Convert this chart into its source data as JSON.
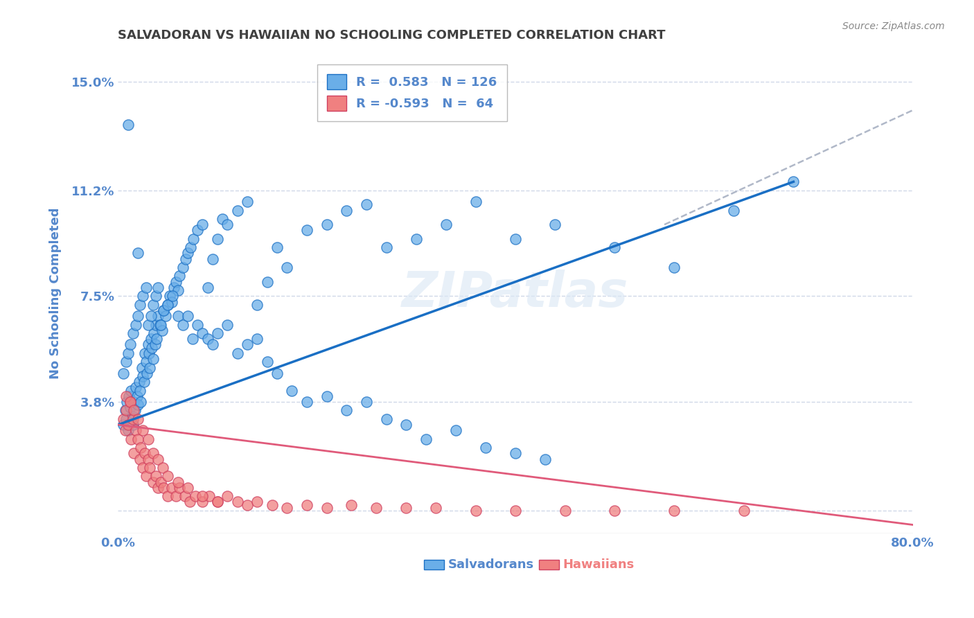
{
  "title": "SALVADORAN VS HAWAIIAN NO SCHOOLING COMPLETED CORRELATION CHART",
  "source": "Source: ZipAtlas.com",
  "ylabel": "No Schooling Completed",
  "x_min": 0.0,
  "x_max": 0.8,
  "y_min": -0.008,
  "y_max": 0.16,
  "x_ticks": [
    0.0,
    0.1,
    0.2,
    0.3,
    0.4,
    0.5,
    0.6,
    0.7,
    0.8
  ],
  "x_tick_labels": [
    "0.0%",
    "",
    "",
    "",
    "",
    "",
    "",
    "",
    "80.0%"
  ],
  "y_tick_vals": [
    0.0,
    0.038,
    0.075,
    0.112,
    0.15
  ],
  "y_tick_labels": [
    "",
    "3.8%",
    "7.5%",
    "11.2%",
    "15.0%"
  ],
  "legend_blue_r": "R =  0.583",
  "legend_blue_n": "N = 126",
  "legend_pink_r": "R = -0.593",
  "legend_pink_n": "N =  64",
  "blue_color": "#6aaee8",
  "pink_color": "#f08080",
  "trend_blue_color": "#1a6fc4",
  "trend_pink_color": "#e05a7a",
  "dashed_color": "#b0b8c8",
  "watermark": "ZIPatlas",
  "label_salvadorans": "Salvadorans",
  "label_hawaiians": "Hawaiians",
  "blue_scatter_x": [
    0.005,
    0.007,
    0.008,
    0.009,
    0.01,
    0.011,
    0.012,
    0.013,
    0.014,
    0.015,
    0.016,
    0.017,
    0.018,
    0.019,
    0.02,
    0.021,
    0.022,
    0.023,
    0.024,
    0.025,
    0.026,
    0.027,
    0.028,
    0.029,
    0.03,
    0.031,
    0.032,
    0.033,
    0.034,
    0.035,
    0.036,
    0.037,
    0.038,
    0.039,
    0.04,
    0.042,
    0.044,
    0.046,
    0.048,
    0.05,
    0.052,
    0.054,
    0.056,
    0.058,
    0.06,
    0.062,
    0.065,
    0.068,
    0.07,
    0.073,
    0.076,
    0.08,
    0.085,
    0.09,
    0.095,
    0.1,
    0.105,
    0.11,
    0.12,
    0.13,
    0.14,
    0.15,
    0.16,
    0.17,
    0.19,
    0.21,
    0.23,
    0.25,
    0.27,
    0.3,
    0.33,
    0.36,
    0.4,
    0.44,
    0.5,
    0.56,
    0.62,
    0.68,
    0.005,
    0.008,
    0.01,
    0.012,
    0.015,
    0.018,
    0.02,
    0.022,
    0.025,
    0.028,
    0.03,
    0.033,
    0.035,
    0.038,
    0.04,
    0.043,
    0.046,
    0.05,
    0.055,
    0.06,
    0.065,
    0.07,
    0.075,
    0.08,
    0.085,
    0.09,
    0.095,
    0.1,
    0.11,
    0.12,
    0.13,
    0.14,
    0.15,
    0.16,
    0.175,
    0.19,
    0.21,
    0.23,
    0.25,
    0.27,
    0.29,
    0.31,
    0.34,
    0.37,
    0.4,
    0.43,
    0.01,
    0.02
  ],
  "blue_scatter_y": [
    0.03,
    0.035,
    0.032,
    0.038,
    0.028,
    0.04,
    0.036,
    0.042,
    0.033,
    0.03,
    0.038,
    0.035,
    0.043,
    0.04,
    0.037,
    0.045,
    0.042,
    0.038,
    0.05,
    0.047,
    0.045,
    0.055,
    0.052,
    0.048,
    0.058,
    0.055,
    0.05,
    0.06,
    0.057,
    0.053,
    0.062,
    0.058,
    0.065,
    0.06,
    0.068,
    0.065,
    0.063,
    0.07,
    0.068,
    0.072,
    0.075,
    0.073,
    0.078,
    0.08,
    0.077,
    0.082,
    0.085,
    0.088,
    0.09,
    0.092,
    0.095,
    0.098,
    0.1,
    0.078,
    0.088,
    0.095,
    0.102,
    0.1,
    0.105,
    0.108,
    0.072,
    0.08,
    0.092,
    0.085,
    0.098,
    0.1,
    0.105,
    0.107,
    0.092,
    0.095,
    0.1,
    0.108,
    0.095,
    0.1,
    0.092,
    0.085,
    0.105,
    0.115,
    0.048,
    0.052,
    0.055,
    0.058,
    0.062,
    0.065,
    0.068,
    0.072,
    0.075,
    0.078,
    0.065,
    0.068,
    0.072,
    0.075,
    0.078,
    0.065,
    0.07,
    0.072,
    0.075,
    0.068,
    0.065,
    0.068,
    0.06,
    0.065,
    0.062,
    0.06,
    0.058,
    0.062,
    0.065,
    0.055,
    0.058,
    0.06,
    0.052,
    0.048,
    0.042,
    0.038,
    0.04,
    0.035,
    0.038,
    0.032,
    0.03,
    0.025,
    0.028,
    0.022,
    0.02,
    0.018,
    0.135,
    0.09
  ],
  "pink_scatter_x": [
    0.005,
    0.007,
    0.008,
    0.01,
    0.012,
    0.013,
    0.015,
    0.016,
    0.018,
    0.02,
    0.022,
    0.023,
    0.025,
    0.027,
    0.028,
    0.03,
    0.032,
    0.035,
    0.038,
    0.04,
    0.043,
    0.046,
    0.05,
    0.054,
    0.058,
    0.062,
    0.067,
    0.072,
    0.078,
    0.085,
    0.092,
    0.1,
    0.11,
    0.12,
    0.13,
    0.14,
    0.155,
    0.17,
    0.19,
    0.21,
    0.235,
    0.26,
    0.29,
    0.32,
    0.36,
    0.4,
    0.45,
    0.5,
    0.56,
    0.63,
    0.008,
    0.012,
    0.016,
    0.02,
    0.025,
    0.03,
    0.035,
    0.04,
    0.045,
    0.05,
    0.06,
    0.07,
    0.085,
    0.1
  ],
  "pink_scatter_y": [
    0.032,
    0.028,
    0.035,
    0.03,
    0.038,
    0.025,
    0.032,
    0.02,
    0.028,
    0.025,
    0.018,
    0.022,
    0.015,
    0.02,
    0.012,
    0.018,
    0.015,
    0.01,
    0.012,
    0.008,
    0.01,
    0.008,
    0.005,
    0.008,
    0.005,
    0.008,
    0.005,
    0.003,
    0.005,
    0.003,
    0.005,
    0.003,
    0.005,
    0.003,
    0.002,
    0.003,
    0.002,
    0.001,
    0.002,
    0.001,
    0.002,
    0.001,
    0.001,
    0.001,
    0.0,
    0.0,
    0.0,
    0.0,
    0.0,
    0.0,
    0.04,
    0.038,
    0.035,
    0.032,
    0.028,
    0.025,
    0.02,
    0.018,
    0.015,
    0.012,
    0.01,
    0.008,
    0.005,
    0.003
  ],
  "blue_line_x": [
    0.0,
    0.68
  ],
  "blue_line_y": [
    0.03,
    0.115
  ],
  "dashed_line_x": [
    0.55,
    0.8
  ],
  "dashed_line_y": [
    0.1,
    0.14
  ],
  "pink_line_x": [
    0.0,
    0.8
  ],
  "pink_line_y": [
    0.03,
    -0.005
  ],
  "background_color": "#ffffff",
  "grid_color": "#d0d8e8",
  "title_color": "#404040",
  "tick_label_color": "#5588cc"
}
